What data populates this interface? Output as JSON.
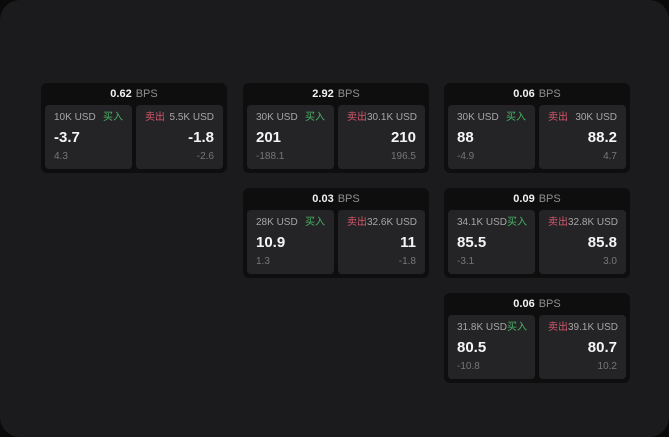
{
  "unit_label": "BPS",
  "buy_label": "买入",
  "sell_label": "卖出",
  "colors": {
    "app_background": "#1b1b1d",
    "card_background": "#0e0e0f",
    "panel_background": "#242427",
    "buy": "#49b364",
    "sell": "#d4566a"
  },
  "cards": [
    {
      "bps": "0.62",
      "row": 0,
      "col": 0,
      "buy": {
        "amount": "10K USD",
        "value": "-3.7",
        "sub": "4.3"
      },
      "sell": {
        "amount": "5.5K USD",
        "value": "-1.8",
        "sub": "-2.6"
      }
    },
    {
      "bps": "2.92",
      "row": 0,
      "col": 1,
      "buy": {
        "amount": "30K USD",
        "value": "201",
        "sub": "-188.1"
      },
      "sell": {
        "amount": "30.1K USD",
        "value": "210",
        "sub": "196.5"
      }
    },
    {
      "bps": "0.06",
      "row": 0,
      "col": 2,
      "buy": {
        "amount": "30K USD",
        "value": "88",
        "sub": "-4.9"
      },
      "sell": {
        "amount": "30K USD",
        "value": "88.2",
        "sub": "4.7"
      }
    },
    {
      "bps": "0.03",
      "row": 1,
      "col": 1,
      "buy": {
        "amount": "28K USD",
        "value": "10.9",
        "sub": "1.3"
      },
      "sell": {
        "amount": "32.6K USD",
        "value": "11",
        "sub": "-1.8"
      }
    },
    {
      "bps": "0.09",
      "row": 1,
      "col": 2,
      "buy": {
        "amount": "34.1K USD",
        "value": "85.5",
        "sub": "-3.1"
      },
      "sell": {
        "amount": "32.8K USD",
        "value": "85.8",
        "sub": "3.0"
      }
    },
    {
      "bps": "0.06",
      "row": 2,
      "col": 2,
      "buy": {
        "amount": "31.8K USD",
        "value": "80.5",
        "sub": "-10.8"
      },
      "sell": {
        "amount": "39.1K USD",
        "value": "80.7",
        "sub": "10.2"
      }
    }
  ]
}
